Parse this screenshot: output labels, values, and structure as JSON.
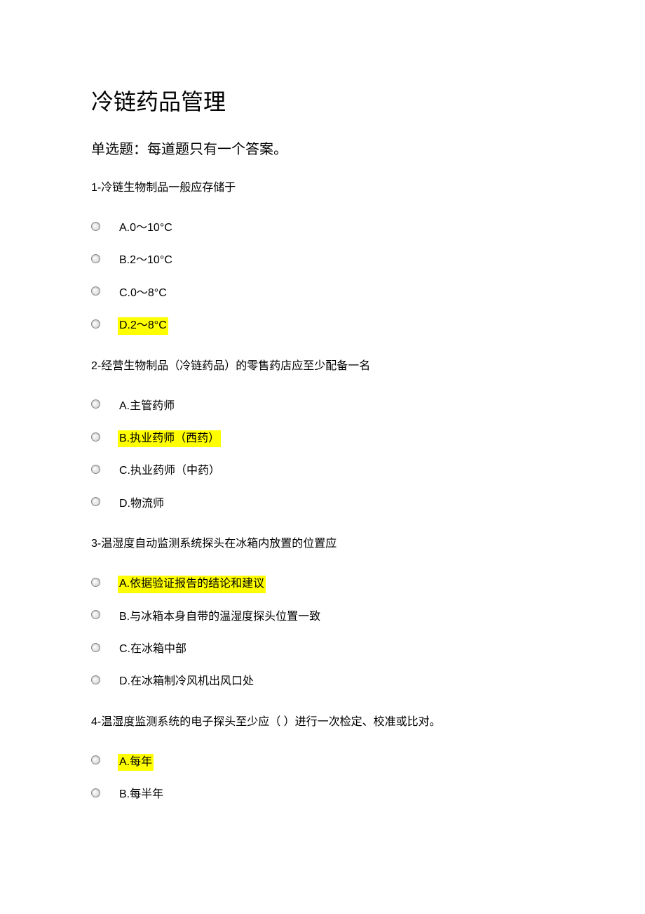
{
  "document": {
    "title": "冷链药品管理",
    "subtitle": "单选题：每道题只有一个答案。",
    "highlight_color": "#ffff00",
    "background_color": "#ffffff",
    "text_color": "#000000",
    "title_fontsize": 32,
    "subtitle_fontsize": 20,
    "body_fontsize": 16,
    "questions": [
      {
        "text": "1-冷链生物制品一般应存储于",
        "options": [
          {
            "label": "A.0～10°C",
            "highlighted": false
          },
          {
            "label": "B.2～10°C",
            "highlighted": false
          },
          {
            "label": "C.0～8°C",
            "highlighted": false
          },
          {
            "label": "D.2～8°C",
            "highlighted": true
          }
        ]
      },
      {
        "text": "2-经营生物制品（冷链药品）的零售药店应至少配备一名",
        "options": [
          {
            "label": "A.主管药师",
            "highlighted": false
          },
          {
            "label": "B.执业药师（西药）",
            "highlighted": true
          },
          {
            "label": "C.执业药师（中药）",
            "highlighted": false
          },
          {
            "label": "D.物流师",
            "highlighted": false
          }
        ]
      },
      {
        "text": "3-温湿度自动监测系统探头在冰箱内放置的位置应",
        "options": [
          {
            "label": "A.依据验证报告的结论和建议",
            "highlighted": true
          },
          {
            "label": "B.与冰箱本身自带的温湿度探头位置一致",
            "highlighted": false
          },
          {
            "label": "C.在冰箱中部",
            "highlighted": false
          },
          {
            "label": "D.在冰箱制冷风机出风口处",
            "highlighted": false
          }
        ]
      },
      {
        "text": "4-温湿度监测系统的电子探头至少应（  ）进行一次检定、校准或比对。",
        "options": [
          {
            "label": "A.每年",
            "highlighted": true
          },
          {
            "label": "B.每半年",
            "highlighted": false
          }
        ]
      }
    ]
  }
}
